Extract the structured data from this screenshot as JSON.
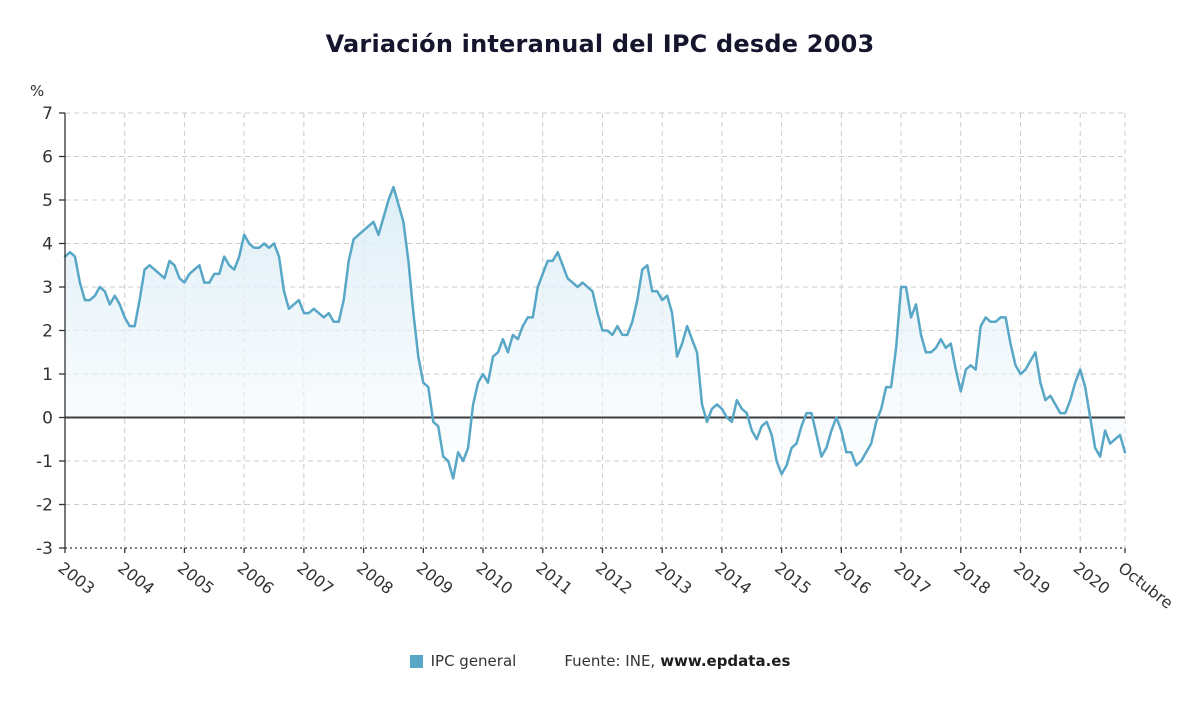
{
  "title": "Variación interanual del IPC desde 2003",
  "legend": {
    "series_label": "IPC general",
    "source_prefix": "Fuente: INE,",
    "source_link": "www.epdata.es"
  },
  "colors": {
    "line": "#58a7c6",
    "area_top": "#d8ebf5",
    "area_bottom": "#fbfdfe",
    "grid": "#cccccc",
    "axis": "#333333",
    "zero_line": "#3d3d3d",
    "text": "#333333",
    "title": "#15152e"
  },
  "chart_data": {
    "type": "area",
    "title": "Variación interanual del IPC desde 2003",
    "xlabel": "",
    "ylabel": "%",
    "ylim": [
      -3,
      7
    ],
    "y_ticks": [
      7,
      6,
      5,
      4,
      3,
      2,
      1,
      0,
      -1,
      -2,
      -3
    ],
    "x_tick_labels": [
      "2003",
      "2004",
      "2005",
      "2006",
      "2007",
      "2008",
      "2009",
      "2010",
      "2011",
      "2012",
      "2013",
      "2014",
      "2015",
      "2016",
      "2017",
      "2018",
      "2019",
      "2020",
      "Octubre"
    ],
    "frequency": "monthly",
    "start": "2003-01",
    "end": "2020-10",
    "grid": true,
    "legend_position": "bottom",
    "series": [
      {
        "name": "IPC general",
        "color": "#58a7c6",
        "values": [
          3.7,
          3.8,
          3.7,
          3.1,
          2.7,
          2.7,
          2.8,
          3.0,
          2.9,
          2.6,
          2.8,
          2.6,
          2.3,
          2.1,
          2.1,
          2.7,
          3.4,
          3.5,
          3.4,
          3.3,
          3.2,
          3.6,
          3.5,
          3.2,
          3.1,
          3.3,
          3.4,
          3.5,
          3.1,
          3.1,
          3.3,
          3.3,
          3.7,
          3.5,
          3.4,
          3.7,
          4.2,
          4.0,
          3.9,
          3.9,
          4.0,
          3.9,
          4.0,
          3.7,
          2.9,
          2.5,
          2.6,
          2.7,
          2.4,
          2.4,
          2.5,
          2.4,
          2.3,
          2.4,
          2.2,
          2.2,
          2.7,
          3.6,
          4.1,
          4.2,
          4.3,
          4.4,
          4.5,
          4.2,
          4.6,
          5.0,
          5.3,
          4.9,
          4.5,
          3.6,
          2.4,
          1.4,
          0.8,
          0.7,
          -0.1,
          -0.2,
          -0.9,
          -1.0,
          -1.4,
          -0.8,
          -1.0,
          -0.7,
          0.3,
          0.8,
          1.0,
          0.8,
          1.4,
          1.5,
          1.8,
          1.5,
          1.9,
          1.8,
          2.1,
          2.3,
          2.3,
          3.0,
          3.3,
          3.6,
          3.6,
          3.8,
          3.5,
          3.2,
          3.1,
          3.0,
          3.1,
          3.0,
          2.9,
          2.4,
          2.0,
          2.0,
          1.9,
          2.1,
          1.9,
          1.9,
          2.2,
          2.7,
          3.4,
          3.5,
          2.9,
          2.9,
          2.7,
          2.8,
          2.4,
          1.4,
          1.7,
          2.1,
          1.8,
          1.5,
          0.3,
          -0.1,
          0.2,
          0.3,
          0.2,
          0.0,
          -0.1,
          0.4,
          0.2,
          0.1,
          -0.3,
          -0.5,
          -0.2,
          -0.1,
          -0.4,
          -1.0,
          -1.3,
          -1.1,
          -0.7,
          -0.6,
          -0.2,
          0.1,
          0.1,
          -0.4,
          -0.9,
          -0.7,
          -0.3,
          0.0,
          -0.3,
          -0.8,
          -0.8,
          -1.1,
          -1.0,
          -0.8,
          -0.6,
          -0.1,
          0.2,
          0.7,
          0.7,
          1.6,
          3.0,
          3.0,
          2.3,
          2.6,
          1.9,
          1.5,
          1.5,
          1.6,
          1.8,
          1.6,
          1.7,
          1.1,
          0.6,
          1.1,
          1.2,
          1.1,
          2.1,
          2.3,
          2.2,
          2.2,
          2.3,
          2.3,
          1.7,
          1.2,
          1.0,
          1.1,
          1.3,
          1.5,
          0.8,
          0.4,
          0.5,
          0.3,
          0.1,
          0.1,
          0.4,
          0.8,
          1.1,
          0.7,
          0.0,
          -0.7,
          -0.9,
          -0.3,
          -0.6,
          -0.5,
          -0.4,
          -0.8
        ]
      }
    ]
  }
}
